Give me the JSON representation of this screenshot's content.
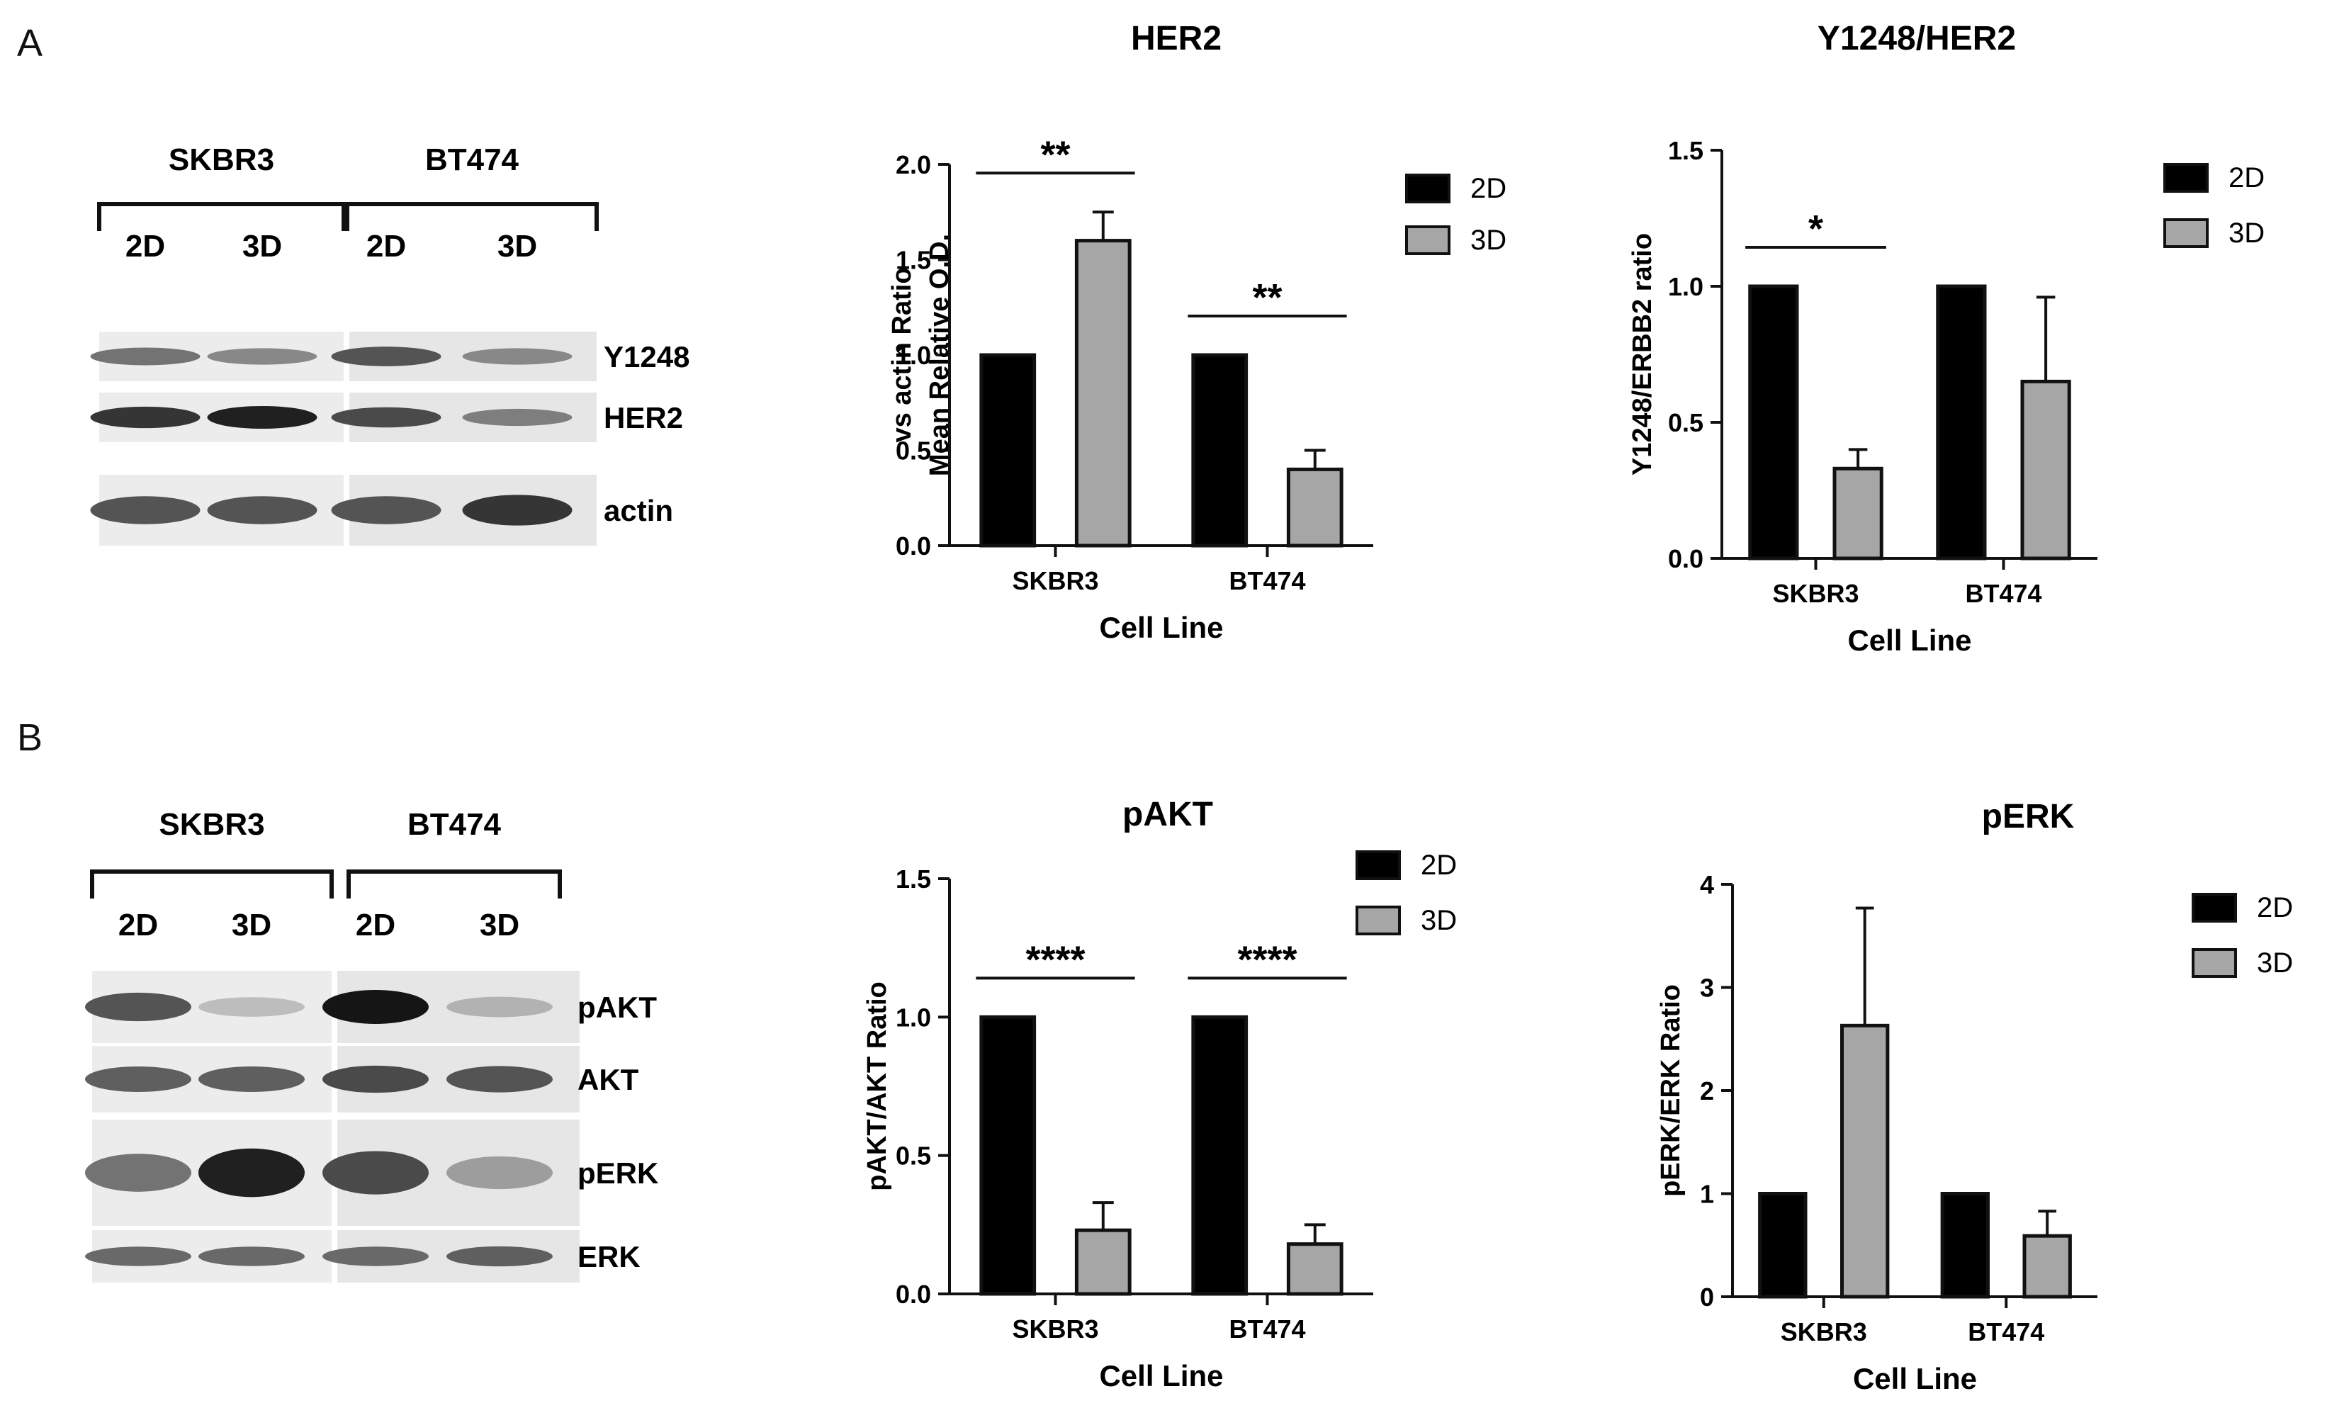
{
  "panels": {
    "A": {
      "letter": "A"
    },
    "B": {
      "letter": "B"
    }
  },
  "blots": [
    {
      "cell_lines": [
        "SKBR3",
        "BT474"
      ],
      "conditions": [
        "2D",
        "3D",
        "2D",
        "3D"
      ],
      "bands": [
        {
          "label": "Y1248",
          "intensities": [
            0.55,
            0.45,
            0.7,
            0.45
          ]
        },
        {
          "label": "HER2",
          "intensities": [
            0.85,
            0.95,
            0.75,
            0.5
          ]
        },
        {
          "label": "actin",
          "intensities": [
            0.7,
            0.7,
            0.7,
            0.85
          ]
        }
      ]
    },
    {
      "cell_lines": [
        "SKBR3",
        "BT474"
      ],
      "conditions": [
        "2D",
        "3D",
        "2D",
        "3D"
      ],
      "bands": [
        {
          "label": "pAKT",
          "intensities": [
            0.7,
            0.2,
            1.0,
            0.25
          ]
        },
        {
          "label": "AKT",
          "intensities": [
            0.65,
            0.65,
            0.75,
            0.7
          ]
        },
        {
          "label": "pERK",
          "intensities": [
            0.55,
            0.95,
            0.75,
            0.35
          ]
        },
        {
          "label": "ERK",
          "intensities": [
            0.6,
            0.6,
            0.6,
            0.65
          ]
        }
      ]
    }
  ],
  "chart_data": [
    {
      "type": "bar",
      "title": "HER2",
      "xlabel": "Cell Line",
      "ylabel": "Mean Relative O.D.",
      "ylabel2": "vs actin Ratio",
      "categories": [
        "SKBR3",
        "BT474"
      ],
      "series": [
        {
          "name": "2D",
          "values": [
            1.0,
            1.0
          ],
          "errors": [
            0,
            0
          ]
        },
        {
          "name": "3D",
          "values": [
            1.6,
            0.4
          ],
          "errors": [
            0.15,
            0.1
          ]
        }
      ],
      "ylim": [
        0,
        2.0
      ],
      "yticks": [
        "0.0",
        "0.5",
        "1.0",
        "1.5",
        "2.0"
      ],
      "significance": [
        "**",
        "**"
      ],
      "legend": "top-right",
      "colors": {
        "2D": "#000000",
        "3D": "#a6a6a6"
      }
    },
    {
      "type": "bar",
      "title": "Y1248/HER2",
      "xlabel": "Cell Line",
      "ylabel": "Y1248/ERBB2 ratio",
      "ylabel2": "",
      "categories": [
        "SKBR3",
        "BT474"
      ],
      "series": [
        {
          "name": "2D",
          "values": [
            1.0,
            1.0
          ],
          "errors": [
            0,
            0
          ]
        },
        {
          "name": "3D",
          "values": [
            0.33,
            0.65
          ],
          "errors": [
            0.07,
            0.31
          ]
        }
      ],
      "ylim": [
        0,
        1.5
      ],
      "yticks": [
        "0.0",
        "0.5",
        "1.0",
        "1.5"
      ],
      "significance": [
        "*",
        ""
      ],
      "legend": "top-right",
      "colors": {
        "2D": "#000000",
        "3D": "#a6a6a6"
      }
    },
    {
      "type": "bar",
      "title": "pAKT",
      "xlabel": "Cell Line",
      "ylabel": "pAKT/AKT Ratio",
      "ylabel2": "",
      "categories": [
        "SKBR3",
        "BT474"
      ],
      "series": [
        {
          "name": "2D",
          "values": [
            1.0,
            1.0
          ],
          "errors": [
            0,
            0
          ]
        },
        {
          "name": "3D",
          "values": [
            0.23,
            0.18
          ],
          "errors": [
            0.1,
            0.07
          ]
        }
      ],
      "ylim": [
        0,
        1.5
      ],
      "yticks": [
        "0.0",
        "0.5",
        "1.0",
        "1.5"
      ],
      "significance": [
        "****",
        "****"
      ],
      "legend": "top-right",
      "colors": {
        "2D": "#000000",
        "3D": "#a6a6a6"
      }
    },
    {
      "type": "bar",
      "title": "pERK",
      "xlabel": "Cell Line",
      "ylabel": "pERK/ERK Ratio",
      "ylabel2": "",
      "categories": [
        "SKBR3",
        "BT474"
      ],
      "series": [
        {
          "name": "2D",
          "values": [
            1.0,
            1.0
          ],
          "errors": [
            0,
            0
          ]
        },
        {
          "name": "3D",
          "values": [
            2.63,
            0.59
          ],
          "errors": [
            1.14,
            0.24
          ]
        }
      ],
      "ylim": [
        0,
        4
      ],
      "yticks": [
        "0",
        "1",
        "2",
        "3",
        "4"
      ],
      "significance": [
        "",
        ""
      ],
      "legend": "top-right",
      "colors": {
        "2D": "#000000",
        "3D": "#a6a6a6"
      }
    }
  ]
}
